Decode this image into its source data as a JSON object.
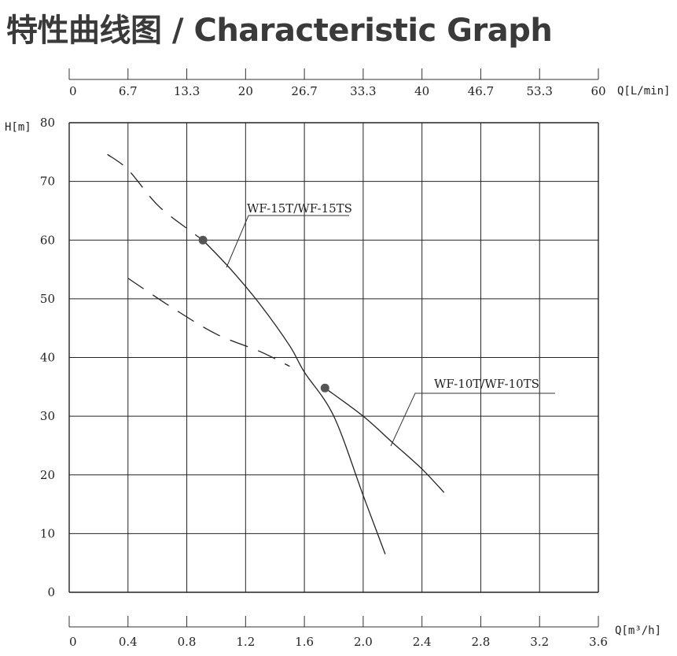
{
  "title": "特性曲线图 / Characteristic Graph",
  "chart_data": {
    "type": "line",
    "ylabel": "H[m]",
    "xlabel": "Q[m³/h]",
    "x2label": "Q[L/min]",
    "xlim": [
      0,
      3.6
    ],
    "ylim": [
      0,
      80
    ],
    "x_ticks": [
      "0",
      "0.4",
      "0.8",
      "1.2",
      "1.6",
      "2.0",
      "2.4",
      "2.8",
      "3.2",
      "3.6"
    ],
    "x2_ticks": [
      "0",
      "6.7",
      "13.3",
      "20",
      "26.7",
      "33.3",
      "40",
      "46.7",
      "53.3",
      "60"
    ],
    "y_ticks": [
      "0",
      "10",
      "20",
      "30",
      "40",
      "50",
      "60",
      "70",
      "80"
    ],
    "grid": true,
    "series": [
      {
        "name": "WF-15T/WF-15TS",
        "points": [
          [
            0.26,
            74.6
          ],
          [
            0.4,
            72
          ],
          [
            0.6,
            66
          ],
          [
            0.8,
            62
          ],
          [
            0.91,
            60
          ],
          [
            1.1,
            55
          ],
          [
            1.3,
            49
          ],
          [
            1.5,
            42
          ],
          [
            1.6,
            37.5
          ],
          [
            1.8,
            30
          ],
          [
            2.0,
            16.5
          ],
          [
            2.15,
            6.5
          ]
        ],
        "dashed_until": 0.91,
        "marker": [
          0.91,
          60
        ]
      },
      {
        "name": "WF-10T/WF-10TS",
        "points": [
          [
            0.4,
            53.5
          ],
          [
            0.7,
            48.5
          ],
          [
            1.0,
            44
          ],
          [
            1.3,
            41
          ],
          [
            1.5,
            38.5
          ],
          [
            1.74,
            34.8
          ],
          [
            2.0,
            30
          ],
          [
            2.2,
            25.5
          ],
          [
            2.4,
            21
          ],
          [
            2.55,
            17
          ]
        ],
        "dashed_until": 1.6,
        "marker": [
          1.74,
          34.8
        ]
      }
    ]
  }
}
